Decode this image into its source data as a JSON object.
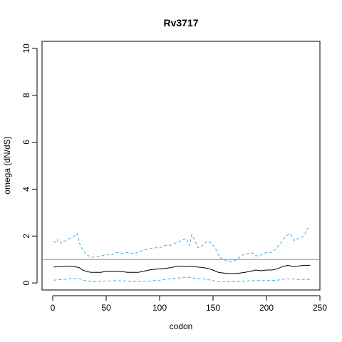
{
  "chart_data": {
    "type": "line",
    "title": "Rv3717",
    "xlabel": "codon",
    "ylabel": "omega (dN/dS)",
    "xlim": [
      -10,
      250
    ],
    "ylim": [
      -0.3,
      10.3
    ],
    "x_ticks": [
      0,
      50,
      100,
      150,
      200,
      250
    ],
    "y_ticks": [
      0,
      2,
      4,
      6,
      8,
      10
    ],
    "reference_line": {
      "y": 1,
      "color": "#cc66cc"
    },
    "grid": false,
    "series": [
      {
        "role": "upper",
        "color": "#3daee9",
        "dash": "dashed",
        "x": [
          1,
          3,
          5,
          8,
          12,
          16,
          20,
          23,
          25,
          28,
          32,
          36,
          40,
          45,
          50,
          55,
          60,
          65,
          70,
          75,
          80,
          85,
          90,
          95,
          100,
          105,
          110,
          115,
          120,
          125,
          128,
          130,
          133,
          136,
          140,
          145,
          148,
          152,
          156,
          160,
          164,
          168,
          172,
          175,
          178,
          182,
          186,
          190,
          195,
          200,
          205,
          210,
          215,
          218,
          222,
          226,
          230,
          235,
          238,
          241
        ],
        "y": [
          1.8,
          1.7,
          1.85,
          1.7,
          1.8,
          1.9,
          2.0,
          2.1,
          1.7,
          1.4,
          1.2,
          1.1,
          1.1,
          1.15,
          1.2,
          1.2,
          1.3,
          1.25,
          1.3,
          1.25,
          1.3,
          1.4,
          1.45,
          1.5,
          1.5,
          1.6,
          1.6,
          1.7,
          1.8,
          1.9,
          1.6,
          2.05,
          1.8,
          1.5,
          1.6,
          1.8,
          1.7,
          1.5,
          1.1,
          1.0,
          0.9,
          0.9,
          1.0,
          1.1,
          1.2,
          1.25,
          1.3,
          1.15,
          1.2,
          1.3,
          1.3,
          1.5,
          1.8,
          2.0,
          2.1,
          1.8,
          1.9,
          2.0,
          2.3,
          2.4
        ]
      },
      {
        "role": "estimate",
        "color": "#000000",
        "dash": "solid",
        "x": [
          1,
          5,
          10,
          15,
          20,
          25,
          28,
          32,
          36,
          40,
          45,
          50,
          55,
          60,
          65,
          70,
          75,
          80,
          85,
          90,
          95,
          100,
          105,
          110,
          115,
          120,
          125,
          130,
          135,
          140,
          145,
          150,
          155,
          160,
          165,
          170,
          175,
          180,
          185,
          190,
          195,
          200,
          205,
          210,
          215,
          220,
          225,
          230,
          235,
          241
        ],
        "y": [
          0.68,
          0.7,
          0.7,
          0.72,
          0.7,
          0.65,
          0.55,
          0.48,
          0.45,
          0.45,
          0.45,
          0.5,
          0.48,
          0.5,
          0.48,
          0.45,
          0.45,
          0.45,
          0.5,
          0.55,
          0.58,
          0.6,
          0.62,
          0.65,
          0.7,
          0.72,
          0.7,
          0.72,
          0.68,
          0.66,
          0.62,
          0.55,
          0.45,
          0.42,
          0.4,
          0.4,
          0.42,
          0.45,
          0.5,
          0.55,
          0.52,
          0.55,
          0.55,
          0.6,
          0.7,
          0.75,
          0.7,
          0.72,
          0.75,
          0.75
        ]
      },
      {
        "role": "lower",
        "color": "#3daee9",
        "dash": "dashed",
        "x": [
          1,
          10,
          20,
          25,
          30,
          40,
          50,
          60,
          70,
          80,
          90,
          100,
          110,
          120,
          125,
          130,
          140,
          150,
          155,
          160,
          170,
          180,
          190,
          200,
          210,
          220,
          230,
          241
        ],
        "y": [
          0.12,
          0.15,
          0.2,
          0.18,
          0.1,
          0.05,
          0.08,
          0.1,
          0.08,
          0.05,
          0.08,
          0.12,
          0.18,
          0.22,
          0.25,
          0.22,
          0.18,
          0.1,
          0.05,
          0.05,
          0.05,
          0.08,
          0.1,
          0.1,
          0.12,
          0.18,
          0.15,
          0.15
        ]
      }
    ]
  }
}
